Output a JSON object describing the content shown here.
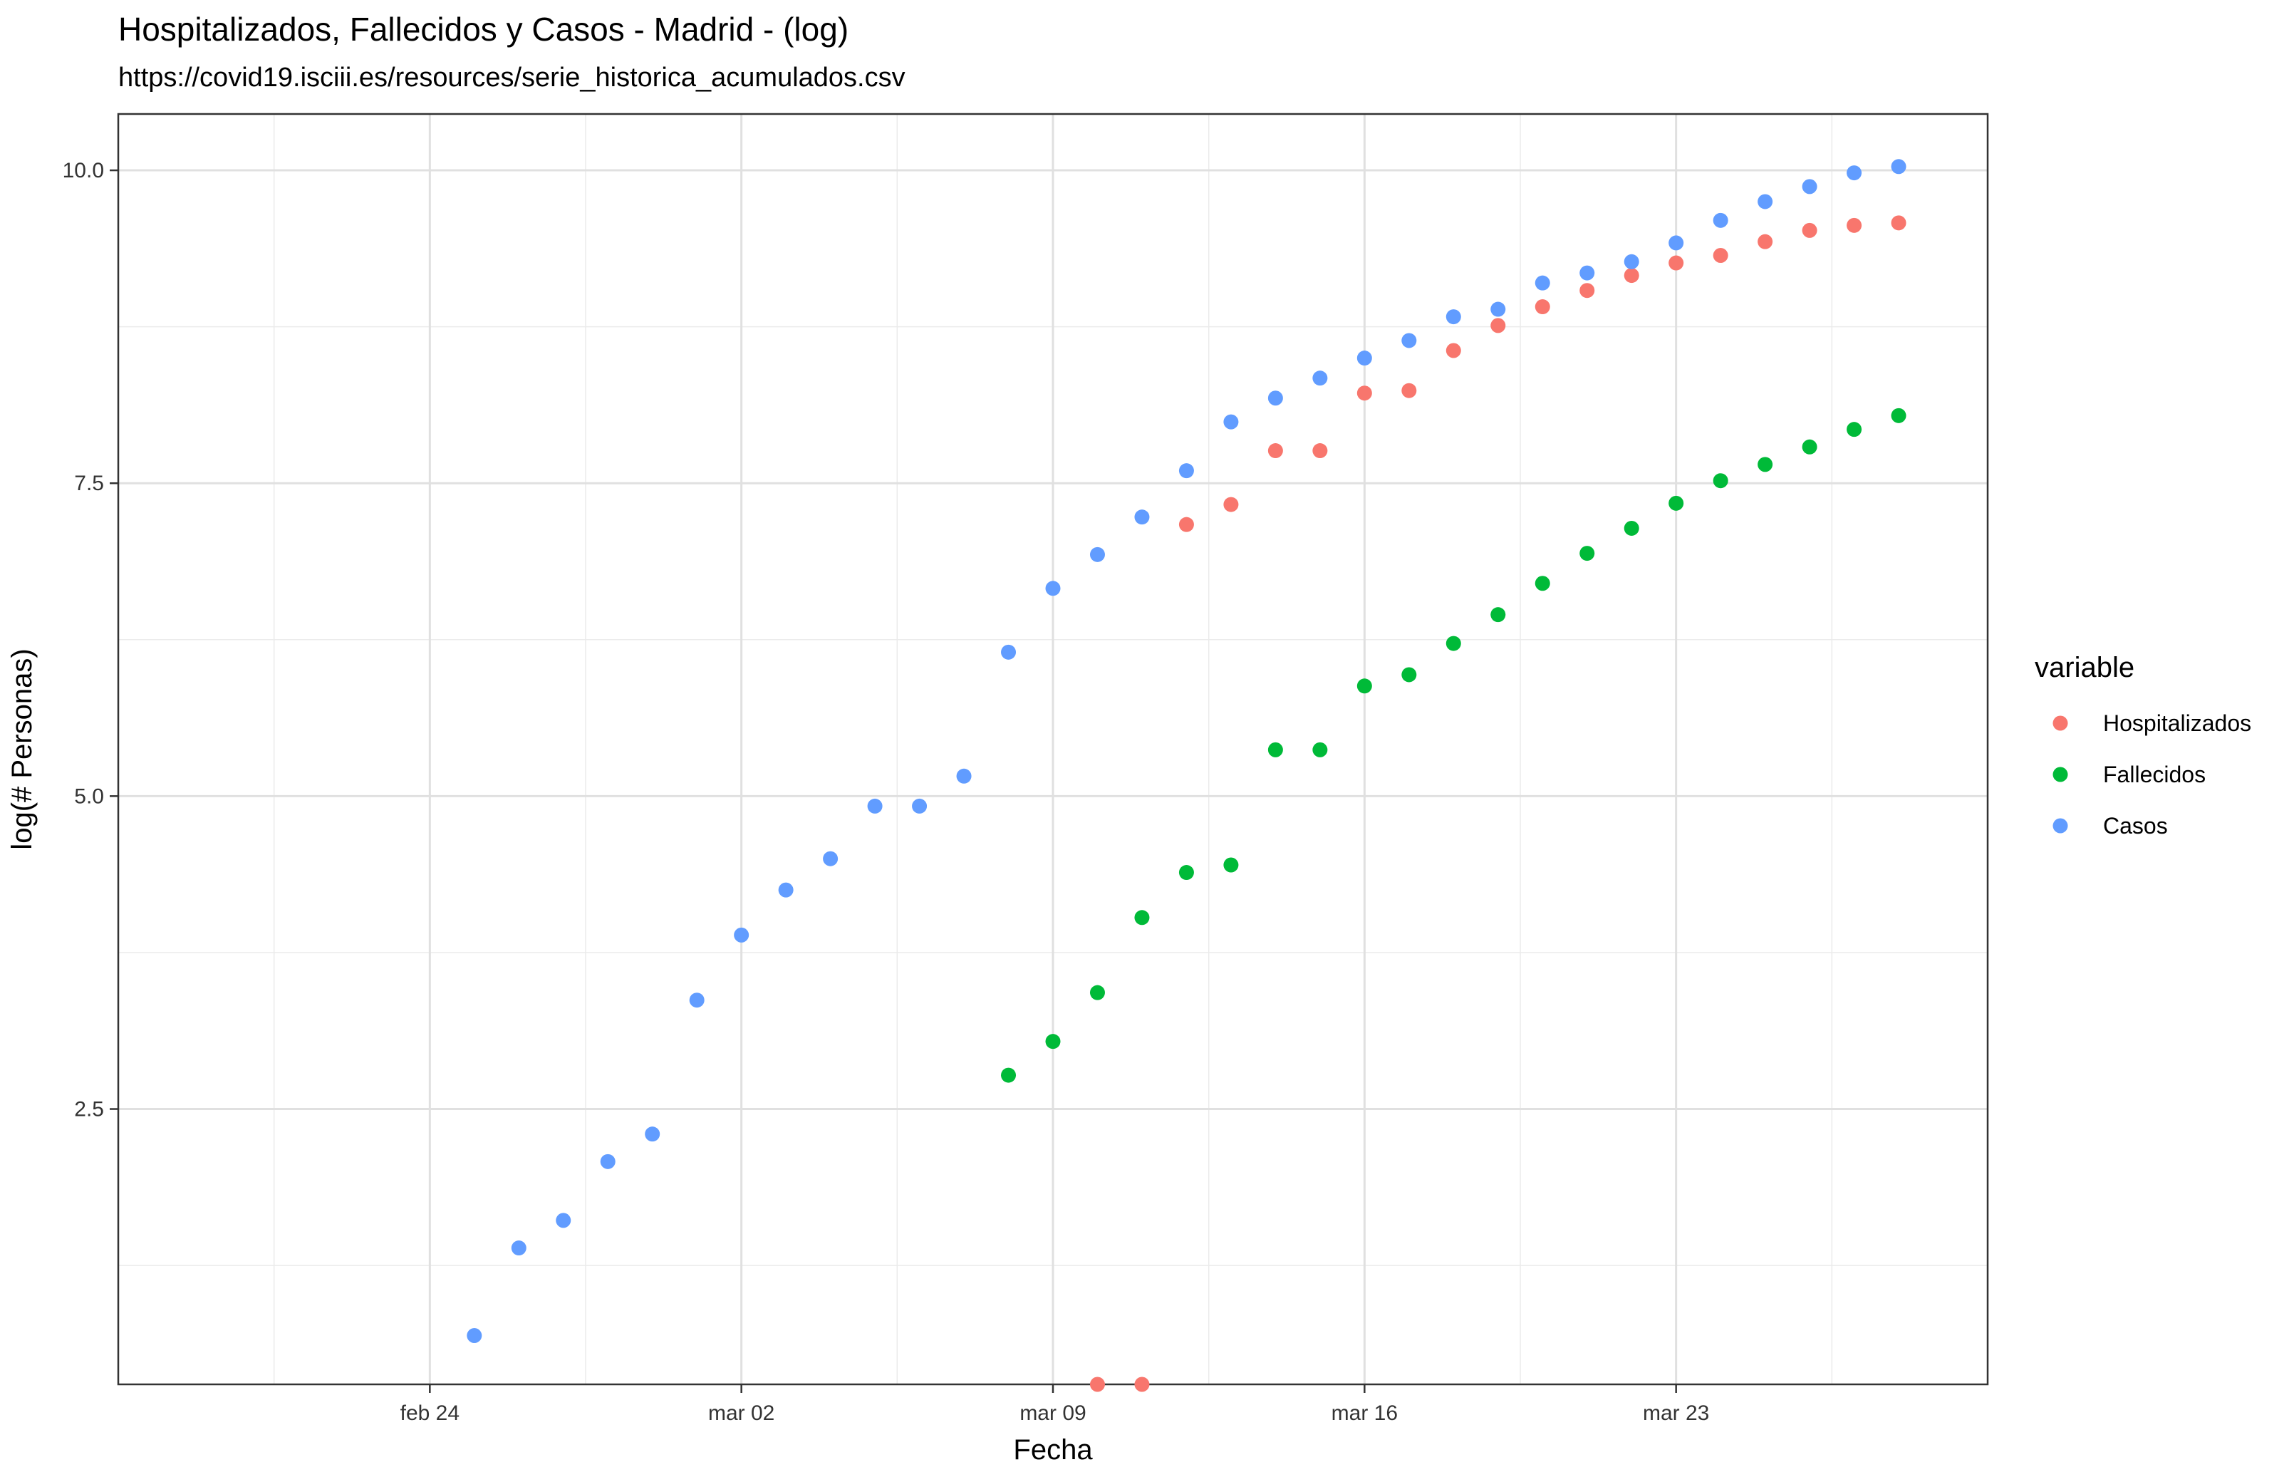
{
  "chart_data": {
    "type": "scatter",
    "title": "Hospitalizados, Fallecidos y Casos - Madrid - (log)",
    "subtitle": "https://covid19.isciii.es/resources/serie_historica_acumulados.csv",
    "xlabel": "Fecha",
    "ylabel": "log(# Personas)",
    "x_ticks": [
      {
        "date": "2020-02-24",
        "label": "feb 24"
      },
      {
        "date": "2020-03-02",
        "label": "mar 02"
      },
      {
        "date": "2020-03-09",
        "label": "mar 09"
      },
      {
        "date": "2020-03-16",
        "label": "mar 16"
      },
      {
        "date": "2020-03-23",
        "label": "mar 23"
      }
    ],
    "y_ticks": [
      {
        "value": 2.5,
        "label": "2.5"
      },
      {
        "value": 5.0,
        "label": "5.0"
      },
      {
        "value": 7.5,
        "label": "7.5"
      },
      {
        "value": 10.0,
        "label": "10.0"
      }
    ],
    "xlim": [
      "2020-02-17",
      "2020-03-30"
    ],
    "ylim": [
      0.3,
      10.45
    ],
    "grid": true,
    "legend": {
      "title": "variable",
      "position": "right"
    },
    "series": [
      {
        "name": "Hospitalizados",
        "color": "#F8766D",
        "points": [
          {
            "x": "2020-03-10",
            "y": 0.3
          },
          {
            "x": "2020-03-11",
            "y": 0.3
          },
          {
            "x": "2020-03-12",
            "y": 7.17
          },
          {
            "x": "2020-03-13",
            "y": 7.33
          },
          {
            "x": "2020-03-14",
            "y": 7.76
          },
          {
            "x": "2020-03-15",
            "y": 7.76
          },
          {
            "x": "2020-03-16",
            "y": 8.22
          },
          {
            "x": "2020-03-17",
            "y": 8.24
          },
          {
            "x": "2020-03-18",
            "y": 8.56
          },
          {
            "x": "2020-03-19",
            "y": 8.76
          },
          {
            "x": "2020-03-20",
            "y": 8.91
          },
          {
            "x": "2020-03-21",
            "y": 9.04
          },
          {
            "x": "2020-03-22",
            "y": 9.16
          },
          {
            "x": "2020-03-23",
            "y": 9.26
          },
          {
            "x": "2020-03-24",
            "y": 9.32
          },
          {
            "x": "2020-03-25",
            "y": 9.43
          },
          {
            "x": "2020-03-26",
            "y": 9.52
          },
          {
            "x": "2020-03-27",
            "y": 9.56
          },
          {
            "x": "2020-03-28",
            "y": 9.58
          }
        ]
      },
      {
        "name": "Fallecidos",
        "color": "#00BA38",
        "points": [
          {
            "x": "2020-03-08",
            "y": 2.77
          },
          {
            "x": "2020-03-09",
            "y": 3.04
          },
          {
            "x": "2020-03-10",
            "y": 3.43
          },
          {
            "x": "2020-03-11",
            "y": 4.03
          },
          {
            "x": "2020-03-12",
            "y": 4.39
          },
          {
            "x": "2020-03-13",
            "y": 4.45
          },
          {
            "x": "2020-03-14",
            "y": 5.37
          },
          {
            "x": "2020-03-15",
            "y": 5.37
          },
          {
            "x": "2020-03-16",
            "y": 5.88
          },
          {
            "x": "2020-03-17",
            "y": 5.97
          },
          {
            "x": "2020-03-18",
            "y": 6.22
          },
          {
            "x": "2020-03-19",
            "y": 6.45
          },
          {
            "x": "2020-03-20",
            "y": 6.7
          },
          {
            "x": "2020-03-21",
            "y": 6.94
          },
          {
            "x": "2020-03-22",
            "y": 7.14
          },
          {
            "x": "2020-03-23",
            "y": 7.34
          },
          {
            "x": "2020-03-24",
            "y": 7.52
          },
          {
            "x": "2020-03-25",
            "y": 7.65
          },
          {
            "x": "2020-03-26",
            "y": 7.79
          },
          {
            "x": "2020-03-27",
            "y": 7.93
          },
          {
            "x": "2020-03-28",
            "y": 8.04
          }
        ]
      },
      {
        "name": "Casos",
        "color": "#619CFF",
        "points": [
          {
            "x": "2020-02-25",
            "y": 0.69
          },
          {
            "x": "2020-02-26",
            "y": 1.39
          },
          {
            "x": "2020-02-27",
            "y": 1.61
          },
          {
            "x": "2020-02-28",
            "y": 2.08
          },
          {
            "x": "2020-02-29",
            "y": 2.3
          },
          {
            "x": "2020-03-01",
            "y": 3.37
          },
          {
            "x": "2020-03-02",
            "y": 3.89
          },
          {
            "x": "2020-03-03",
            "y": 4.25
          },
          {
            "x": "2020-03-04",
            "y": 4.5
          },
          {
            "x": "2020-03-05",
            "y": 4.92
          },
          {
            "x": "2020-03-06",
            "y": 4.92
          },
          {
            "x": "2020-03-07",
            "y": 5.16
          },
          {
            "x": "2020-03-08",
            "y": 6.15
          },
          {
            "x": "2020-03-09",
            "y": 6.66
          },
          {
            "x": "2020-03-10",
            "y": 6.93
          },
          {
            "x": "2020-03-11",
            "y": 7.23
          },
          {
            "x": "2020-03-12",
            "y": 7.6
          },
          {
            "x": "2020-03-13",
            "y": 7.99
          },
          {
            "x": "2020-03-14",
            "y": 8.18
          },
          {
            "x": "2020-03-15",
            "y": 8.34
          },
          {
            "x": "2020-03-16",
            "y": 8.5
          },
          {
            "x": "2020-03-17",
            "y": 8.64
          },
          {
            "x": "2020-03-18",
            "y": 8.83
          },
          {
            "x": "2020-03-19",
            "y": 8.89
          },
          {
            "x": "2020-03-20",
            "y": 9.1
          },
          {
            "x": "2020-03-21",
            "y": 9.18
          },
          {
            "x": "2020-03-22",
            "y": 9.27
          },
          {
            "x": "2020-03-23",
            "y": 9.42
          },
          {
            "x": "2020-03-24",
            "y": 9.6
          },
          {
            "x": "2020-03-25",
            "y": 9.75
          },
          {
            "x": "2020-03-26",
            "y": 9.87
          },
          {
            "x": "2020-03-27",
            "y": 9.98
          },
          {
            "x": "2020-03-28",
            "y": 10.03
          }
        ]
      }
    ]
  }
}
